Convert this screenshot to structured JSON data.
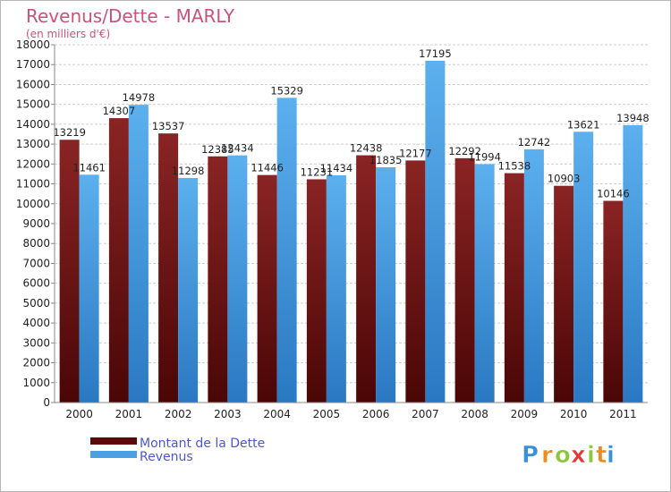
{
  "chart_data": {
    "type": "bar",
    "title": "Revenus/Dette - MARLY",
    "subtitle": "(en milliers d'€)",
    "xlabel": "",
    "ylabel": "",
    "ylim": [
      0,
      18000
    ],
    "yticks": [
      "0",
      "1000",
      "2000",
      "3000",
      "4000",
      "5000",
      "6000",
      "7000",
      "8000",
      "9000",
      "10000",
      "11000",
      "12000",
      "13000",
      "14000",
      "15000",
      "16000",
      "17000",
      "18000"
    ],
    "grid": "horizontal dashed",
    "legend_position": "bottom-left",
    "categories": [
      "2000",
      "2001",
      "2002",
      "2003",
      "2004",
      "2005",
      "2006",
      "2007",
      "2008",
      "2009",
      "2010",
      "2011"
    ],
    "series": [
      {
        "name": "Montant de la Dette",
        "color": "#7e1c1c",
        "values": [
          13219,
          14307,
          13537,
          12385,
          11446,
          11231,
          12438,
          12177,
          12292,
          11538,
          10903,
          10146
        ],
        "labels": [
          "13219",
          "14307",
          "13537",
          "12385",
          "11446",
          "11231",
          "12438",
          "12177",
          "12292",
          "11538",
          "10903",
          "10146"
        ]
      },
      {
        "name": "Revenus",
        "color": "#4aa0e2",
        "values": [
          11461,
          14978,
          11298,
          12434,
          15329,
          11434,
          11835,
          17195,
          11994,
          12742,
          13621,
          13948
        ],
        "labels": [
          "11461",
          "14978",
          "11298",
          "12434",
          "15329",
          "11434",
          "11835",
          "17195",
          "11994",
          "12742",
          "13621",
          "13948"
        ]
      }
    ]
  },
  "logo": {
    "text": "Proxiti",
    "letters": [
      "P",
      "r",
      "o",
      "x",
      "i",
      "t",
      "i"
    ],
    "colors": [
      "#3a8fd8",
      "#f08a1c",
      "#8cc63f",
      "#e23a3a",
      "#8cc63f",
      "#f08a1c",
      "#3a8fd8"
    ]
  }
}
